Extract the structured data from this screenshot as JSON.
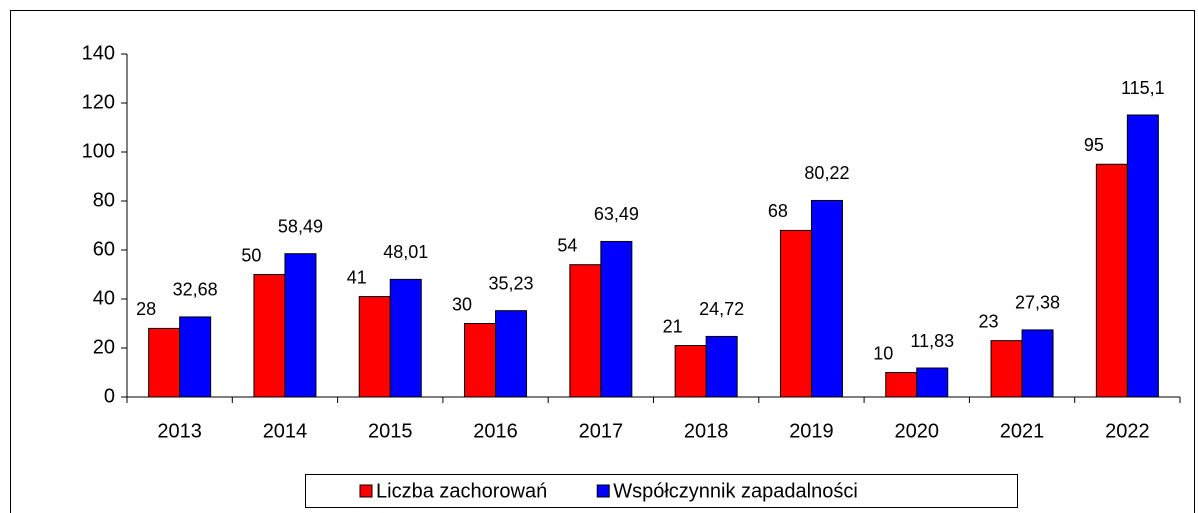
{
  "chart_data": {
    "type": "bar",
    "categories": [
      "2013",
      "2014",
      "2015",
      "2016",
      "2017",
      "2018",
      "2019",
      "2020",
      "2021",
      "2022"
    ],
    "series": [
      {
        "name": "Liczba zachorowań",
        "color": "#ff0000",
        "values": [
          28,
          50,
          41,
          30,
          54,
          21,
          68,
          10,
          23,
          95
        ]
      },
      {
        "name": "Współczynnik zapadalności",
        "color": "#0000ff",
        "values": [
          32.68,
          58.49,
          48.01,
          35.23,
          63.49,
          24.72,
          80.22,
          11.83,
          27.38,
          115.1
        ],
        "value_labels": [
          "32,68",
          "58,49",
          "48,01",
          "35,23",
          "63,49",
          "24,72",
          "80,22",
          "11,83",
          "27,38",
          "115,1"
        ]
      }
    ],
    "ylim": [
      0,
      140
    ],
    "yticks": [
      0,
      20,
      40,
      60,
      80,
      100,
      120,
      140
    ],
    "legend": "bottom"
  }
}
